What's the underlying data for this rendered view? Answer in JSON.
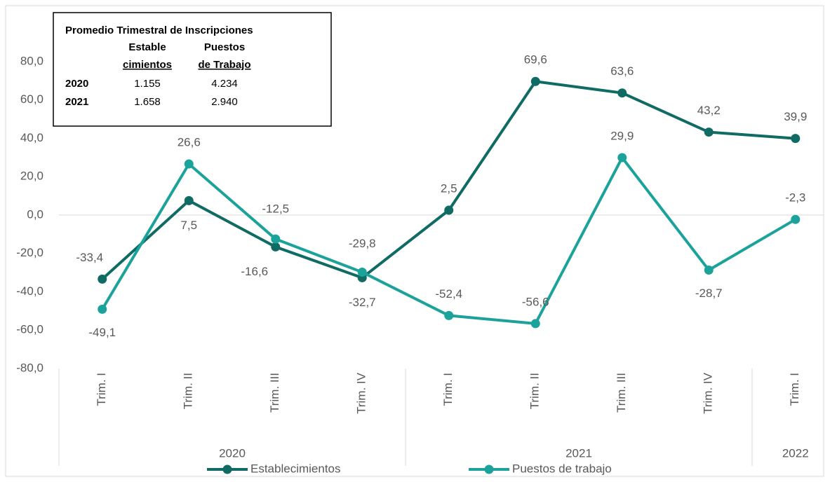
{
  "chart_data": {
    "type": "line",
    "categories": [
      "Trim. I",
      "Trim. II",
      "Trim. III",
      "Trim. IV",
      "Trim. I",
      "Trim. II",
      "Trim. III",
      "Trim. IV",
      "Trim. I"
    ],
    "groups": [
      {
        "label": "2020",
        "span": 4
      },
      {
        "label": "2021",
        "span": 4
      },
      {
        "label": "2022",
        "span": 1
      }
    ],
    "series": [
      {
        "name": "Establecimientos",
        "color": "#0f6b63",
        "values": [
          -33.4,
          7.5,
          -16.6,
          -32.7,
          2.5,
          69.6,
          63.6,
          43.2,
          39.9
        ],
        "value_labels": [
          "-33,4",
          "7,5",
          "-16,6",
          "-32,7",
          "2,5",
          "69,6",
          "63,6",
          "43,2",
          "39,9"
        ]
      },
      {
        "name": "Puestos de trabajo",
        "color": "#1ba39b",
        "values": [
          -49.1,
          26.6,
          -12.5,
          -29.8,
          -52.4,
          -56.6,
          29.9,
          -28.7,
          -2.3
        ],
        "value_labels": [
          "-49,1",
          "26,6",
          "-12,5",
          "-29,8",
          "-52,4",
          "-56,6",
          "29,9",
          "-28,7",
          "-2,3"
        ]
      }
    ],
    "ylim": [
      -80,
      100
    ],
    "yticks": [
      {
        "value": -80,
        "label": "-80,0"
      },
      {
        "value": -60,
        "label": "-60,0"
      },
      {
        "value": -40,
        "label": "-40,0"
      },
      {
        "value": -20,
        "label": "-20,0"
      },
      {
        "value": 0,
        "label": "0,0"
      },
      {
        "value": 20,
        "label": "20,0"
      },
      {
        "value": 40,
        "label": "40,0"
      },
      {
        "value": 60,
        "label": "60,0"
      },
      {
        "value": 80,
        "label": "80,0"
      }
    ],
    "grid": false,
    "legend": "bottom",
    "inset": {
      "title": "Promedio Trimestral de Inscripciones",
      "headers": [
        [
          "Estable",
          "cimientos"
        ],
        [
          "Puestos",
          "de Trabajo"
        ]
      ],
      "rows": [
        [
          "2020",
          "1.155",
          "4.234"
        ],
        [
          "2021",
          "1.658",
          "2.940"
        ]
      ]
    }
  }
}
